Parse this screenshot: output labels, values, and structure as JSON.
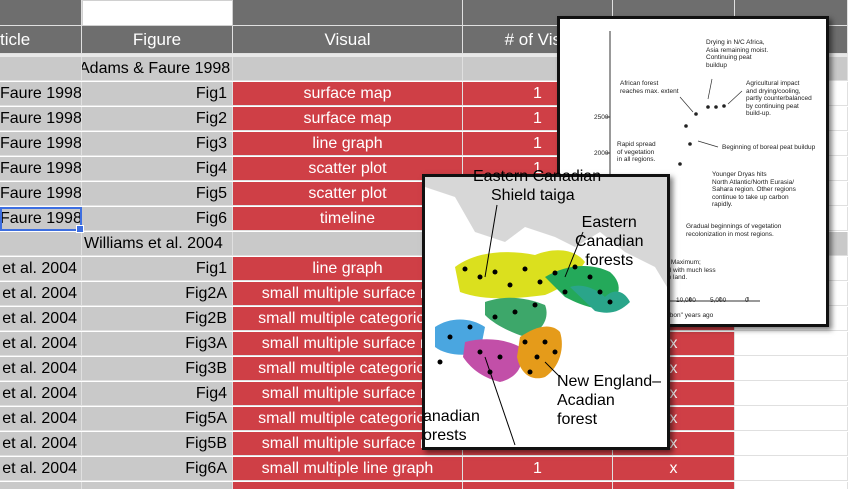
{
  "headers": {
    "article": "ticle",
    "figure": "Figure",
    "visual": "Visual",
    "num_visuals": "# of Visu"
  },
  "groups": [
    {
      "label": "Adams & Faure 1998"
    },
    {
      "label": "Williams et al.  2004"
    }
  ],
  "rows": [
    {
      "article": "Faure 1998",
      "figure": "Fig1",
      "visual": "surface map",
      "num": "1",
      "x": ""
    },
    {
      "article": "Faure 1998",
      "figure": "Fig2",
      "visual": "surface map",
      "num": "1",
      "x": ""
    },
    {
      "article": "Faure 1998",
      "figure": "Fig3",
      "visual": "line graph",
      "num": "1",
      "x": ""
    },
    {
      "article": "Faure 1998",
      "figure": "Fig4",
      "visual": "scatter plot",
      "num": "1",
      "x": ""
    },
    {
      "article": "Faure 1998",
      "figure": "Fig5",
      "visual": "scatter plot",
      "num": "1",
      "x": ""
    },
    {
      "article": "Faure 1998",
      "figure": "Fig6",
      "visual": "timeline",
      "num": "1",
      "x": ""
    },
    {
      "article": "et al.  2004",
      "figure": "Fig1",
      "visual": "line graph",
      "num": "",
      "x": ""
    },
    {
      "article": "et al.  2004",
      "figure": "Fig2A",
      "visual": "small multiple surface m",
      "num": "",
      "x": ""
    },
    {
      "article": "et al.  2004",
      "figure": "Fig2B",
      "visual": "small multiple categorical",
      "num": "",
      "x": ""
    },
    {
      "article": "et al.  2004",
      "figure": "Fig3A",
      "visual": "small multiple surface m",
      "num": "",
      "x": "x"
    },
    {
      "article": "et al.  2004",
      "figure": "Fig3B",
      "visual": "small multiple categorical",
      "num": "",
      "x": "x"
    },
    {
      "article": "et al.  2004",
      "figure": "Fig4",
      "visual": "small multiple surface m",
      "num": "",
      "x": "x"
    },
    {
      "article": "et al.  2004",
      "figure": "Fig5A",
      "visual": "small multiple categorical",
      "num": "",
      "x": "x"
    },
    {
      "article": "et al.  2004",
      "figure": "Fig5B",
      "visual": "small multiple surface m",
      "num": "",
      "x": "x"
    },
    {
      "article": "et al.  2004",
      "figure": "Fig6A",
      "visual": "small multiple line graph",
      "num": "1",
      "x": "x"
    }
  ],
  "timeline_figure": {
    "ticks": [
      "2500",
      "2000"
    ],
    "xticks": [
      "10,000",
      "5,000",
      "0"
    ],
    "xunit": "arbon\" years ago",
    "annotations": [
      "Drying in N/C Africa,\nAsia remaining moist.\nContinuing peat\nbuildup",
      "African forest\nreaches max. extent",
      "Agricultural impact\nand drying/cooling,\npartly counterbalanced\nby continuing peat\nbuild-up.",
      "Beginning of boreal peat buildup",
      "Rapid spread\nof vegetation\nin all regions.",
      "Younger Dryas hits\nNorth Atlantic/North Eurasia/\nSahara region. Other regions\ncontinue to take up carbon\nrapidly.",
      "Gradual beginnings of vegetation\nrecolonization in most regions.",
      "al Maximum;\nrld with much less\non land."
    ]
  },
  "map_figure": {
    "labels": {
      "top": "Eastern Canadian",
      "shield": "Shield taiga",
      "eastern": "Eastern\nCanadian\nforests",
      "newengland": "New England–\nAcadian\nforest",
      "canadian": "anadian\norests"
    }
  }
}
